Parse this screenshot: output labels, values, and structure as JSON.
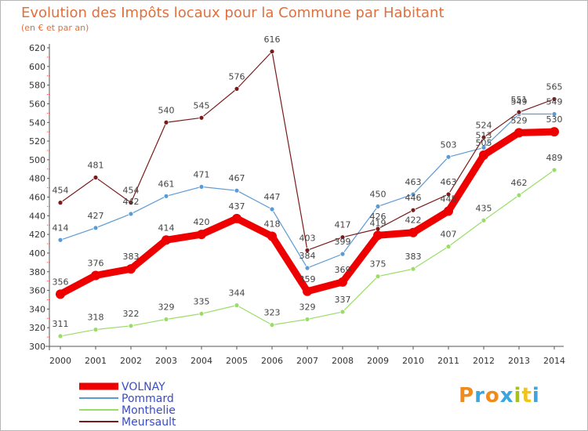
{
  "title": "Evolution des Impôts locaux pour la Commune par Habitant",
  "subtitle": "(en € et par an)",
  "logo": {
    "text": "Proxiti",
    "letters": [
      {
        "ch": "P",
        "color": "#f08a1c"
      },
      {
        "ch": "r",
        "color": "#3aa6dd"
      },
      {
        "ch": "o",
        "color": "#f08a1c"
      },
      {
        "ch": "x",
        "color": "#3aa6dd"
      },
      {
        "ch": "i",
        "color": "#a6c11b"
      },
      {
        "ch": "t",
        "color": "#f0c419"
      },
      {
        "ch": "i",
        "color": "#3aa6dd"
      }
    ]
  },
  "chart_data": {
    "type": "line",
    "title": "Evolution des Impôts locaux pour la Commune par Habitant",
    "subtitle": "(en € et par an)",
    "xlabel": "",
    "ylabel": "",
    "x": [
      "2000",
      "2001",
      "2002",
      "2003",
      "2004",
      "2005",
      "2006",
      "2007",
      "2008",
      "2009",
      "2010",
      "2011",
      "2012",
      "2013",
      "2014"
    ],
    "ylim": [
      300,
      620
    ],
    "yticks": [
      300,
      320,
      340,
      360,
      380,
      400,
      420,
      440,
      460,
      480,
      500,
      520,
      540,
      560,
      580,
      600,
      620
    ],
    "grid": false,
    "legend": "bottom-left",
    "series": [
      {
        "name": "VOLNAY",
        "color": "#ee0000",
        "values": [
          356,
          376,
          383,
          414,
          420,
          437,
          418,
          359,
          369,
          419,
          422,
          445,
          505,
          529,
          530
        ]
      },
      {
        "name": "Pommard",
        "color": "#5b9bd5",
        "values": [
          414,
          427,
          442,
          461,
          471,
          467,
          447,
          384,
          399,
          450,
          463,
          503,
          513,
          549,
          549
        ]
      },
      {
        "name": "Monthelie",
        "color": "#99dd66",
        "values": [
          311,
          318,
          322,
          329,
          335,
          344,
          323,
          329,
          337,
          375,
          383,
          407,
          435,
          462,
          489
        ]
      },
      {
        "name": "Meursault",
        "color": "#7a1a1a",
        "values": [
          454,
          481,
          454,
          540,
          545,
          576,
          616,
          403,
          417,
          426,
          446,
          463,
          524,
          551,
          565
        ]
      }
    ]
  }
}
